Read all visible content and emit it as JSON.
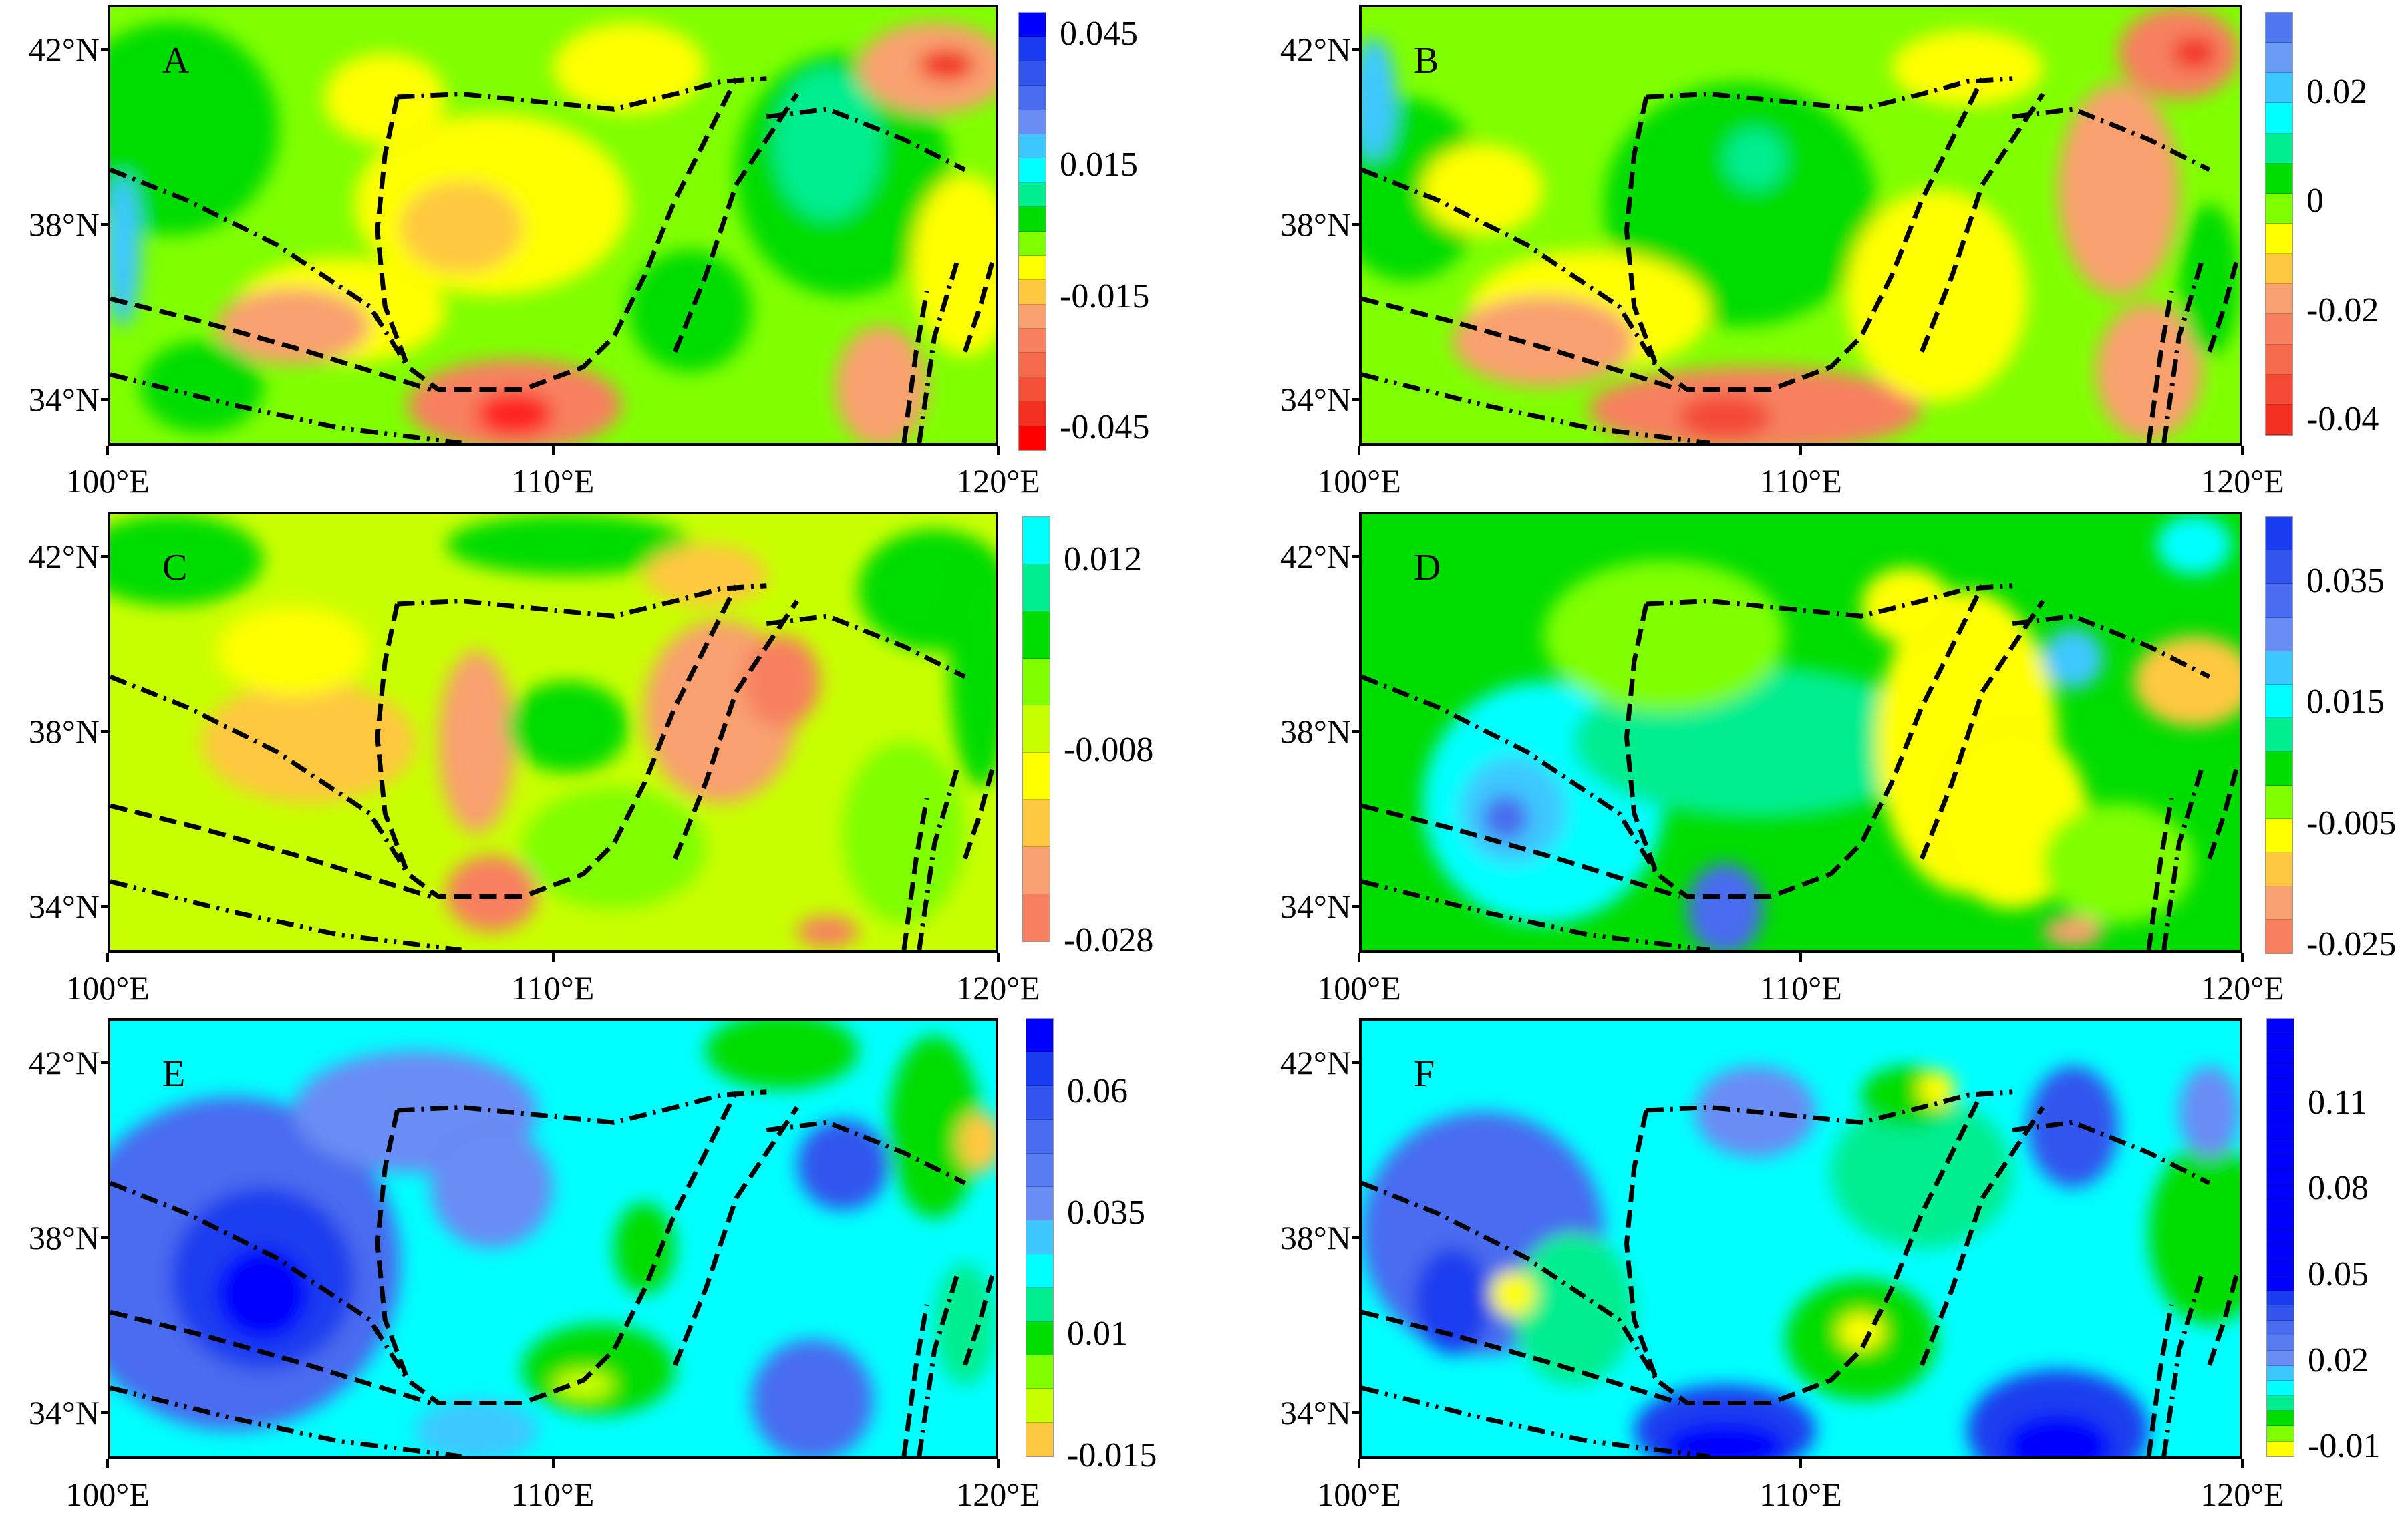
{
  "x_ticks": [
    "100°E",
    "110°E",
    "120°E"
  ],
  "y_ticks": [
    "42°N",
    "38°N",
    "34°N"
  ],
  "panels": [
    {
      "id": "A",
      "label": "A",
      "colorbar": {
        "labels": [
          "0.045",
          "0.015",
          "-0.015",
          "-0.045"
        ],
        "values": [
          0.045,
          0.015,
          -0.015,
          -0.045
        ],
        "range": [
          -0.05,
          0.05
        ],
        "colors": [
          "#0000ff",
          "#1a3cf0",
          "#3355ee",
          "#4a6cf0",
          "#6a8cf5",
          "#3cc8ff",
          "#00ffff",
          "#00ee90",
          "#00dd00",
          "#7fff00",
          "#ffff00",
          "#ffc840",
          "#f9a070",
          "#f88060",
          "#f56a4a",
          "#f45038",
          "#f33020",
          "#ff0000"
        ]
      }
    },
    {
      "id": "B",
      "label": "B",
      "colorbar": {
        "labels": [
          "0.02",
          "0",
          "-0.02",
          "-0.04"
        ],
        "values": [
          0.02,
          0,
          -0.02,
          -0.04
        ],
        "range": [
          -0.0427,
          0.0347
        ],
        "colors": [
          "#5077f0",
          "#6a9cf5",
          "#3cc8ff",
          "#00ffff",
          "#00ee90",
          "#00dd00",
          "#7fff00",
          "#ffff00",
          "#ffc840",
          "#f9a070",
          "#f88060",
          "#f56a4a",
          "#f44a35",
          "#f33020"
        ]
      }
    },
    {
      "id": "C",
      "label": "C",
      "colorbar": {
        "labels": [
          "0.012",
          "-0.008",
          "-0.028"
        ],
        "values": [
          0.012,
          -0.008,
          -0.028
        ],
        "range": [
          -0.028,
          0.0166
        ],
        "colors": [
          "#00ffff",
          "#00ee90",
          "#00dd00",
          "#7fff00",
          "#c8ff00",
          "#ffff00",
          "#ffc840",
          "#f9a070",
          "#f88060"
        ]
      }
    },
    {
      "id": "D",
      "label": "D",
      "colorbar": {
        "labels": [
          "0.035",
          "0.015",
          "-0.005",
          "-0.025"
        ],
        "values": [
          0.035,
          0.015,
          -0.005,
          -0.025
        ],
        "range": [
          -0.0263,
          0.0457
        ],
        "colors": [
          "#1a3cf0",
          "#3355ee",
          "#4a6cf0",
          "#6a8cf5",
          "#3cc8ff",
          "#00ffff",
          "#00ee90",
          "#00dd00",
          "#7fff00",
          "#ffff00",
          "#ffc840",
          "#f9a070",
          "#f88060"
        ]
      }
    },
    {
      "id": "E",
      "label": "E",
      "colorbar": {
        "labels": [
          "0.06",
          "0.035",
          "0.01",
          "-0.015"
        ],
        "values": [
          0.06,
          0.035,
          0.01,
          -0.015
        ],
        "range": [
          -0.015,
          0.0751
        ],
        "colors": [
          "#0000ff",
          "#1a3cf0",
          "#3355ee",
          "#4a6cf0",
          "#5a7cf2",
          "#6a8cf5",
          "#3cc8ff",
          "#00ffff",
          "#00ee90",
          "#00dd00",
          "#7fff00",
          "#c8ff00",
          "#ffc840"
        ]
      }
    },
    {
      "id": "F",
      "label": "F",
      "colorbar": {
        "labels": [
          "0.11",
          "0.08",
          "0.05",
          "0.02",
          "-0.01"
        ],
        "values": [
          0.11,
          0.08,
          0.05,
          0.02,
          -0.01
        ],
        "range": [
          -0.0132,
          0.1395
        ],
        "colors": [
          "#0000ff",
          "#0000ff",
          "#0000ff",
          "#0000ff",
          "#0000ff",
          "#0000ff",
          "#0000ff",
          "#0000ff",
          "#0000ff",
          "#0000ff",
          "#0000ff",
          "#0000ff",
          "#0000ff",
          "#0000ff",
          "#0000ff",
          "#0000ff",
          "#0000ff",
          "#0000ff",
          "#1a3cf0",
          "#3355ee",
          "#4a6cf0",
          "#5a7cf2",
          "#6a8cf5",
          "#3cc8ff",
          "#00ffff",
          "#00ee90",
          "#00dd00",
          "#7fff00",
          "#ffff00"
        ]
      }
    }
  ]
}
